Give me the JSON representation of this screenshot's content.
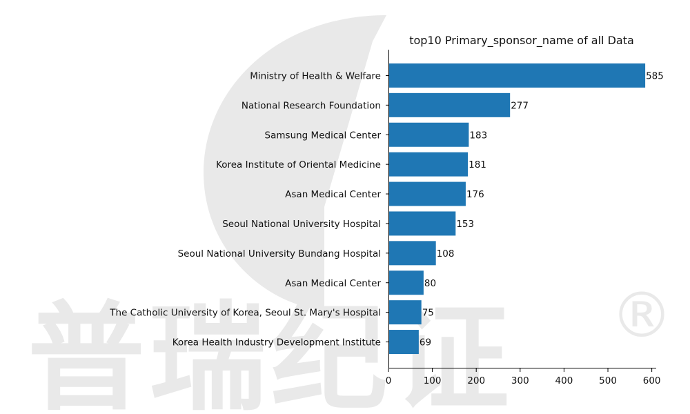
{
  "chart_data": {
    "type": "bar",
    "orientation": "horizontal",
    "title": "top10 Primary_sponsor_name of all Data",
    "xlabel": "",
    "ylabel": "",
    "xlim": [
      0,
      610
    ],
    "xticks": [
      0,
      100,
      200,
      300,
      400,
      500,
      600
    ],
    "grid": false,
    "color": "#1f77b4",
    "categories": [
      "Ministry of Health & Welfare",
      "National Research Foundation",
      "Samsung Medical Center",
      "Korea Institute of Oriental Medicine",
      "Asan Medical Center",
      "Seoul National University Hospital",
      "Seoul National University Bundang Hospital",
      "Asan Medical Center ",
      "The Catholic University of Korea, Seoul St. Mary's Hospital",
      "Korea Health Industry Development Institute"
    ],
    "values": [
      585,
      277,
      183,
      181,
      176,
      153,
      108,
      80,
      75,
      69
    ]
  },
  "watermark": {
    "text": "普瑞纪证",
    "registered_mark": "®"
  }
}
